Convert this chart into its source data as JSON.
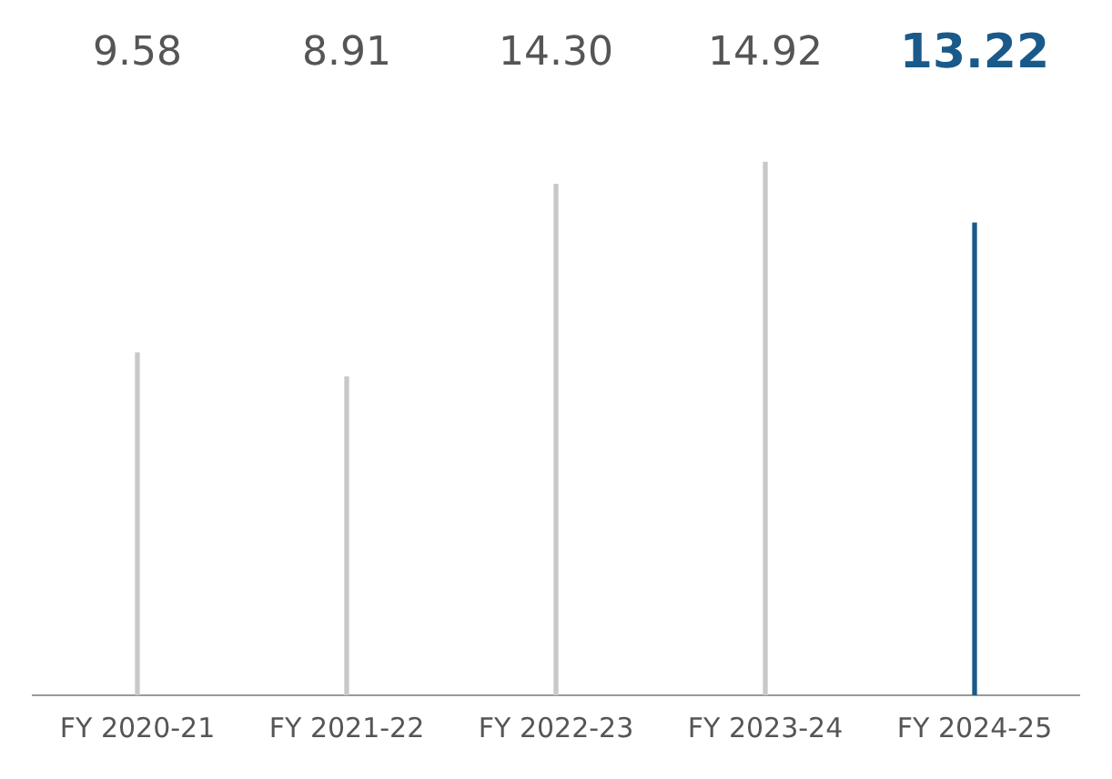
{
  "chart_data": {
    "type": "bar",
    "categories": [
      "FY 2020-21",
      "FY 2021-22",
      "FY 2022-23",
      "FY 2023-24",
      "FY 2024-25"
    ],
    "values": [
      9.58,
      8.91,
      14.3,
      14.92,
      13.22
    ],
    "colors": [
      "#c8c8c8",
      "#c8c8c8",
      "#c8c8c8",
      "#c8c8c8",
      "#1a5a8a"
    ],
    "value_labels": [
      "9.58",
      "8.91",
      "14.30",
      "14.92",
      "13.22"
    ],
    "grid": false,
    "legend": false,
    "tick_labels": "x"
  }
}
